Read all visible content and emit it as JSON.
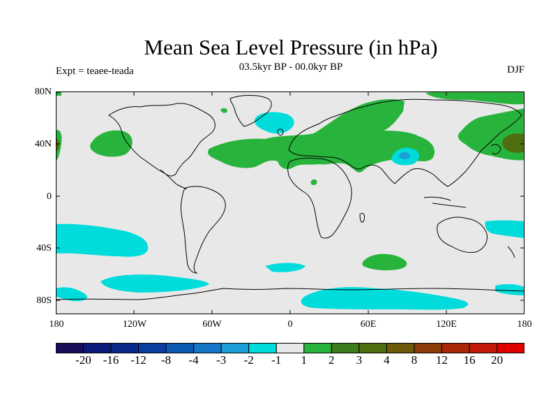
{
  "title": "Mean Sea Level Pressure (in hPa)",
  "subtitle": "03.5kyr BP - 00.0kyr BP",
  "experiment": "Expt = teaee-teada",
  "season": "DJF",
  "lat_labels": [
    "80N",
    "40N",
    "0",
    "40S",
    "80S"
  ],
  "lon_labels": [
    "180",
    "120W",
    "60W",
    "0",
    "60E",
    "120E",
    "180"
  ],
  "colorbar": {
    "colors": [
      "#1a0a5a",
      "#0b1a7a",
      "#0a2a8a",
      "#0b3ea0",
      "#0c5ab4",
      "#1477c8",
      "#1c9fd6",
      "#00dcdc",
      "#e8e8e8",
      "#28b43c",
      "#3c7d1e",
      "#4f6e10",
      "#6e5a08",
      "#8c3c08",
      "#a82808",
      "#c41808",
      "#e00000"
    ],
    "labels": [
      "-20",
      "-16",
      "-12",
      "-8",
      "-4",
      "-3",
      "-2",
      "-1",
      "1",
      "2",
      "3",
      "4",
      "8",
      "12",
      "16",
      "20"
    ]
  },
  "palette": {
    "ocean_neutral": "#e8e8e8",
    "positive_1": "#28b43c",
    "positive_3": "#4f6e10",
    "negative_1": "#00dcdc",
    "negative_2": "#1c9fd6",
    "coastline": "#000000"
  }
}
